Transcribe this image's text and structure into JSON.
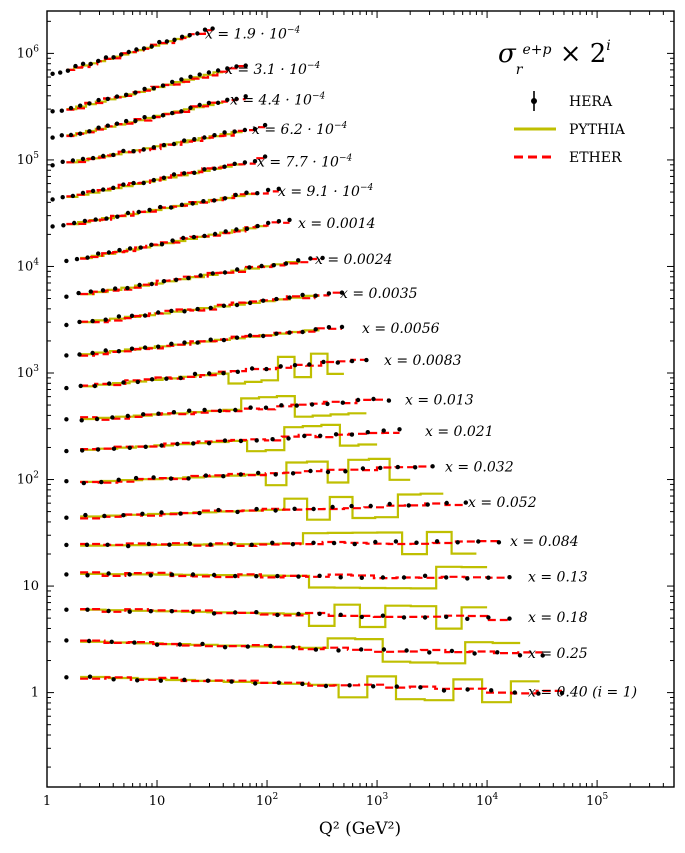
{
  "chart_data": {
    "type": "line",
    "xscale": "log",
    "yscale": "log",
    "xlim": [
      1,
      500000
    ],
    "ylim": [
      0.13,
      2500000
    ],
    "xlabel": "Q² (GeV²)",
    "title_formula": "σ_r^{e+p} × 2^i",
    "x_ticks": [
      {
        "value": 1,
        "label": "1"
      },
      {
        "value": 10,
        "label": "10"
      },
      {
        "value": 100,
        "label": "10",
        "exp": "2"
      },
      {
        "value": 1000,
        "label": "10",
        "exp": "3"
      },
      {
        "value": 10000,
        "label": "10",
        "exp": "4"
      },
      {
        "value": 100000,
        "label": "10",
        "exp": "5"
      }
    ],
    "y_ticks": [
      {
        "value": 1,
        "label": "1"
      },
      {
        "value": 10,
        "label": "10"
      },
      {
        "value": 100,
        "label": "10",
        "exp": "2"
      },
      {
        "value": 1000,
        "label": "10",
        "exp": "3"
      },
      {
        "value": 10000,
        "label": "10",
        "exp": "4"
      },
      {
        "value": 100000,
        "label": "10",
        "exp": "5"
      },
      {
        "value": 1000000,
        "label": "10",
        "exp": "6"
      }
    ],
    "legend": [
      {
        "name": "HERA",
        "style": "points",
        "color": "#000000"
      },
      {
        "name": "PYTHIA",
        "style": "solid",
        "color": "#bfbf00"
      },
      {
        "name": "ETHER",
        "style": "dashed",
        "color": "#ff0000"
      }
    ],
    "bins": [
      {
        "label": "x = 1.9 · 10",
        "exp": "−4",
        "label_x": 205,
        "q2": [
          1.5,
          20
        ],
        "y0": 700000,
        "y1": 1500000
      },
      {
        "label": "x = 3.1 · 10",
        "exp": "−4",
        "label_x": 225,
        "q2": [
          1.5,
          40
        ],
        "y0": 300000,
        "y1": 700000
      },
      {
        "label": "x = 4.4 · 10",
        "exp": "−4",
        "label_x": 230,
        "q2": [
          1.5,
          40
        ],
        "y0": 170000,
        "y1": 360000
      },
      {
        "label": "x = 6.2 · 10",
        "exp": "−4",
        "label_x": 252,
        "q2": [
          1.5,
          60
        ],
        "y0": 95000,
        "y1": 190000
      },
      {
        "label": "x = 7.7 · 10",
        "exp": "−4",
        "label_x": 257,
        "q2": [
          1.5,
          60
        ],
        "y0": 45000,
        "y1": 95000
      },
      {
        "label": "x = 9.1 · 10",
        "exp": "−4",
        "label_x": 278,
        "q2": [
          1.5,
          80
        ],
        "y0": 25000,
        "y1": 50000
      },
      {
        "label": "x = 0.0014",
        "exp": "",
        "label_x": 298,
        "q2": [
          2,
          100
        ],
        "y0": 12000,
        "y1": 25000
      },
      {
        "label": "x = 0.0024",
        "exp": "",
        "label_x": 315,
        "q2": [
          2,
          200
        ],
        "y0": 5500,
        "y1": 11500
      },
      {
        "label": "x = 0.0035",
        "exp": "",
        "label_x": 340,
        "q2": [
          2,
          300
        ],
        "y0": 3000,
        "y1": 5500
      },
      {
        "label": "x = 0.0056",
        "exp": "",
        "label_x": 362,
        "q2": [
          2,
          300
        ],
        "y0": 1500,
        "y1": 2600
      },
      {
        "label": "x = 0.0083",
        "exp": "",
        "label_x": 384,
        "q2": [
          2,
          500
        ],
        "y0": 750,
        "y1": 1300
      },
      {
        "label": "x = 0.013",
        "exp": "",
        "label_x": 405,
        "q2": [
          2,
          800
        ],
        "y0": 370,
        "y1": 550
      },
      {
        "label": "x = 0.021",
        "exp": "",
        "label_x": 425,
        "q2": [
          2,
          1000
        ],
        "y0": 190,
        "y1": 280
      },
      {
        "label": "x = 0.032",
        "exp": "",
        "label_x": 445,
        "q2": [
          2,
          2000
        ],
        "y0": 95,
        "y1": 130
      },
      {
        "label": "x = 0.052",
        "exp": "",
        "label_x": 468,
        "q2": [
          2,
          4000
        ],
        "y0": 45,
        "y1": 60
      },
      {
        "label": "x = 0.084",
        "exp": "",
        "label_x": 510,
        "q2": [
          2,
          8000
        ],
        "y0": 24,
        "y1": 26
      },
      {
        "label": "x = 0.13",
        "exp": "",
        "label_x": 528,
        "q2": [
          2,
          10000
        ],
        "y0": 13,
        "y1": 12
      },
      {
        "label": "x = 0.18",
        "exp": "",
        "label_x": 528,
        "q2": [
          2,
          10000
        ],
        "y0": 6,
        "y1": 5
      },
      {
        "label": "x = 0.25",
        "exp": "",
        "label_x": 528,
        "q2": [
          2,
          20000
        ],
        "y0": 3,
        "y1": 2.3
      },
      {
        "label": "x = 0.40 (i = 1)",
        "exp": "",
        "label_x": 528,
        "q2": [
          2,
          30000
        ],
        "y0": 1.4,
        "y1": 1.0
      }
    ]
  }
}
